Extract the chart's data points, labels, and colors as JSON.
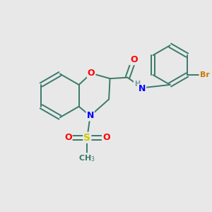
{
  "bg_color": "#e8e8e8",
  "atom_colors": {
    "C": "#3a7a6a",
    "N": "#0000ff",
    "O": "#ff0000",
    "S": "#cccc00",
    "Br": "#cc7700",
    "H": "#7a9a9a"
  },
  "bond_color": "#3a7a6a",
  "figsize": [
    3.0,
    3.0
  ],
  "dpi": 100
}
